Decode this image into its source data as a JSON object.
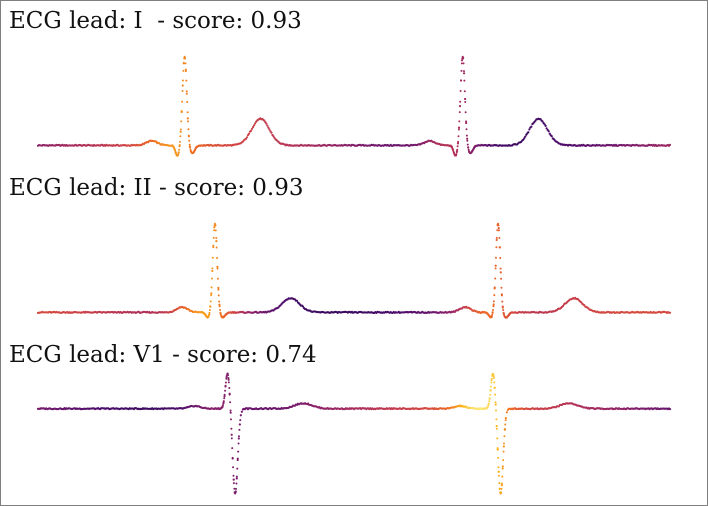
{
  "colormap": [
    "#1b0c41",
    "#4a0c6b",
    "#781c6d",
    "#a52c60",
    "#cf4446",
    "#ed6925",
    "#fbb61a",
    "#fcffa4"
  ],
  "chart_data": [
    {
      "type": "scatter",
      "title": "ECG lead: I  - score: 0.93",
      "xlabel": "",
      "ylabel": "",
      "xlim": [
        0,
        2.5
      ],
      "ylim": [
        -0.3,
        1.3
      ],
      "grid": false,
      "axes_visible": false,
      "point_color": "per-sample attribution (magma colormap)",
      "beats_s": [
        0.58,
        1.68
      ],
      "features": {
        "p_amp": 0.05,
        "q_amp": -0.12,
        "r_amp": 1.0,
        "s_amp": -0.09,
        "t_amp": 0.3,
        "baseline": 0.0
      },
      "keypoints": [
        {
          "name": "P1",
          "x": 0.45,
          "y": 0.05
        },
        {
          "name": "R1",
          "x": 0.58,
          "y": 1.0
        },
        {
          "name": "T1",
          "x": 0.88,
          "y": 0.3
        },
        {
          "name": "P2",
          "x": 1.56,
          "y": 0.05
        },
        {
          "name": "R2",
          "x": 1.68,
          "y": 1.0
        },
        {
          "name": "T2",
          "x": 1.99,
          "y": 0.3
        }
      ]
    },
    {
      "type": "scatter",
      "title": "ECG lead: II - score: 0.93",
      "xlabel": "",
      "ylabel": "",
      "xlim": [
        0,
        2.5
      ],
      "ylim": [
        -0.3,
        1.3
      ],
      "grid": false,
      "axes_visible": false,
      "point_color": "per-sample attribution (magma colormap)",
      "beats_s": [
        0.7,
        1.82
      ],
      "features": {
        "p_amp": 0.06,
        "q_amp": -0.06,
        "r_amp": 1.0,
        "s_amp": -0.06,
        "t_amp": 0.16,
        "baseline": 0.0
      },
      "keypoints": [
        {
          "name": "P1",
          "x": 0.52,
          "y": 0.06
        },
        {
          "name": "R1",
          "x": 0.7,
          "y": 1.0
        },
        {
          "name": "T1",
          "x": 0.98,
          "y": 0.16
        },
        {
          "name": "P2",
          "x": 1.68,
          "y": 0.06
        },
        {
          "name": "R2",
          "x": 1.82,
          "y": 1.0
        },
        {
          "name": "T2",
          "x": 2.12,
          "y": 0.16
        }
      ]
    },
    {
      "type": "scatter",
      "title": "ECG lead: V1 - score: 0.74",
      "xlabel": "",
      "ylabel": "",
      "xlim": [
        0,
        2.5
      ],
      "ylim": [
        -1.0,
        0.5
      ],
      "grid": false,
      "axes_visible": false,
      "point_color": "per-sample attribution (magma colormap)",
      "beats_s": [
        0.75,
        1.8
      ],
      "features": {
        "p_amp": 0.03,
        "q_amp": 0.0,
        "r_amp": 0.4,
        "s_amp": -0.95,
        "t_amp": 0.06,
        "baseline": 0.0
      },
      "keypoints": [
        {
          "name": "P1",
          "x": 0.6,
          "y": 0.03
        },
        {
          "name": "R1",
          "x": 0.75,
          "y": 0.4
        },
        {
          "name": "S1",
          "x": 0.78,
          "y": -0.95
        },
        {
          "name": "T1",
          "x": 1.05,
          "y": 0.06
        },
        {
          "name": "P2",
          "x": 1.66,
          "y": 0.03
        },
        {
          "name": "R2",
          "x": 1.8,
          "y": 0.4
        },
        {
          "name": "S2",
          "x": 1.84,
          "y": -0.95
        },
        {
          "name": "T2",
          "x": 2.12,
          "y": 0.06
        }
      ]
    }
  ]
}
